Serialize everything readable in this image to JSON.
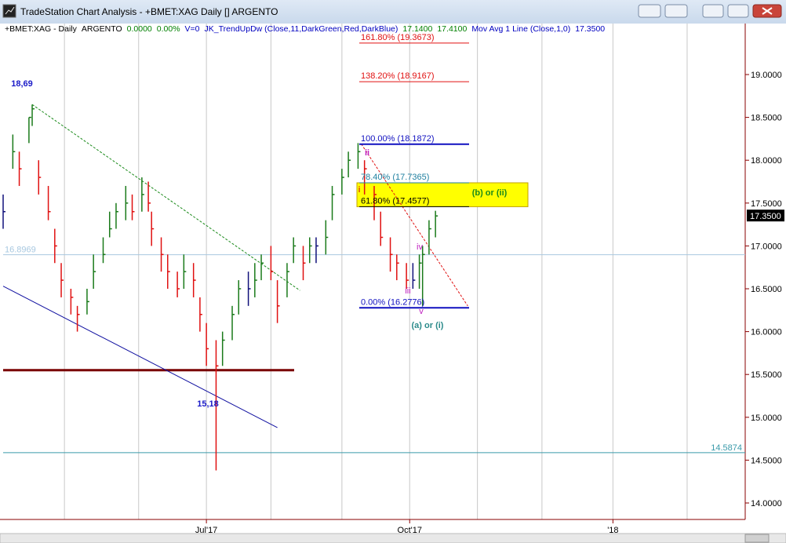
{
  "window": {
    "title": "TradeStation Chart Analysis - +BMET:XAG Daily [] ARGENTO"
  },
  "status_line": [
    {
      "text": "+BMET:XAG - Daily",
      "color": "#000000"
    },
    {
      "text": "ARGENTO",
      "color": "#000000"
    },
    {
      "text": "0.0000",
      "color": "#008000"
    },
    {
      "text": "0.00%",
      "color": "#008000"
    },
    {
      "text": "V=0",
      "color": "#0000c0"
    },
    {
      "text": "JK_TrendUpDw (Close,11,DarkGreen,Red,DarkBlue)",
      "color": "#0000c0"
    },
    {
      "text": "17.1400",
      "color": "#008000"
    },
    {
      "text": "17.4100",
      "color": "#008000"
    },
    {
      "text": "Mov Avg 1 Line (Close,1,0)",
      "color": "#0000c0"
    },
    {
      "text": "17.3500",
      "color": "#0000c0"
    }
  ],
  "chart_data": {
    "type": "ohlc",
    "x": [
      0,
      3,
      5,
      8,
      9,
      11,
      14,
      16,
      18,
      21,
      23,
      26,
      28,
      31,
      33,
      35,
      38,
      40,
      43,
      45,
      46,
      49,
      51,
      54,
      56,
      59,
      61,
      63,
      66,
      68,
      71,
      73,
      76,
      78,
      80,
      83,
      85,
      88,
      90,
      93,
      95,
      97,
      100,
      102,
      105,
      107,
      110,
      112,
      115,
      117,
      120,
      122,
      125,
      127,
      129,
      130,
      132,
      134
    ],
    "high": [
      17.6,
      18.3,
      18.1,
      18.5,
      18.65,
      18.0,
      17.7,
      17.2,
      16.8,
      16.5,
      16.3,
      16.5,
      16.9,
      17.1,
      17.4,
      17.5,
      17.7,
      17.6,
      17.8,
      17.75,
      17.4,
      17.1,
      16.9,
      16.7,
      16.9,
      16.8,
      16.4,
      16.1,
      15.9,
      16.0,
      16.3,
      16.6,
      16.7,
      16.8,
      16.9,
      17.0,
      16.6,
      16.8,
      17.1,
      17.0,
      17.1,
      17.1,
      17.3,
      17.7,
      17.9,
      18.1,
      18.2,
      18.0,
      17.7,
      17.4,
      17.1,
      16.9,
      16.8,
      16.8,
      16.9,
      17.0,
      17.3,
      17.41
    ],
    "low": [
      17.2,
      17.9,
      17.7,
      18.2,
      18.4,
      17.6,
      17.3,
      16.8,
      16.4,
      16.2,
      16.0,
      16.2,
      16.5,
      16.8,
      17.1,
      17.2,
      17.3,
      17.3,
      17.4,
      17.4,
      17.0,
      16.7,
      16.5,
      16.4,
      16.5,
      16.4,
      16.0,
      15.6,
      14.38,
      15.6,
      15.9,
      16.2,
      16.3,
      16.4,
      16.6,
      16.6,
      16.1,
      16.4,
      16.8,
      16.6,
      16.8,
      16.8,
      16.9,
      17.3,
      17.6,
      17.8,
      17.9,
      17.6,
      17.3,
      17.0,
      16.7,
      16.6,
      16.5,
      16.5,
      16.5,
      16.3,
      16.9,
      17.1
    ],
    "close": [
      17.4,
      18.1,
      17.9,
      18.5,
      18.6,
      17.8,
      17.4,
      17.0,
      16.6,
      16.4,
      16.2,
      16.35,
      16.7,
      16.9,
      17.2,
      17.4,
      17.5,
      17.4,
      17.6,
      17.5,
      17.2,
      16.9,
      16.7,
      16.5,
      16.7,
      16.6,
      16.2,
      15.8,
      15.6,
      15.9,
      16.2,
      16.5,
      16.5,
      16.6,
      16.8,
      16.7,
      16.3,
      16.7,
      17.0,
      16.8,
      17.0,
      17.0,
      17.1,
      17.6,
      17.8,
      18.0,
      18.1,
      17.9,
      17.6,
      17.1,
      16.9,
      16.8,
      16.6,
      16.6,
      16.8,
      16.9,
      17.2,
      17.35
    ],
    "up_color": "#1a7a1a",
    "down_color": "#e01010",
    "flat_color": "#10107a",
    "xlim": [
      0,
      230
    ],
    "ylim": [
      13.8,
      19.6
    ],
    "xgrid": [
      19,
      42,
      63,
      83,
      105,
      126,
      147,
      167,
      189,
      212
    ],
    "xticks": [
      {
        "value": 63,
        "label": "Jul'17"
      },
      {
        "value": 126,
        "label": "Oct'17"
      },
      {
        "value": 189,
        "label": "'18"
      }
    ],
    "yticks": [
      {
        "value": 14,
        "label": "14.0000"
      },
      {
        "value": 14.5,
        "label": "14.5000"
      },
      {
        "value": 15,
        "label": "15.0000"
      },
      {
        "value": 15.5,
        "label": "15.5000"
      },
      {
        "value": 16,
        "label": "16.0000"
      },
      {
        "value": 16.5,
        "label": "16.5000"
      },
      {
        "value": 17,
        "label": "17.0000"
      },
      {
        "value": 17.5,
        "label": "17.5000"
      },
      {
        "value": 18,
        "label": "18.0000"
      },
      {
        "value": 18.5,
        "label": "18.5000"
      },
      {
        "value": 19,
        "label": "19.0000"
      }
    ],
    "last_price": {
      "value": 17.35,
      "label": "17.3500"
    },
    "levels": [
      {
        "value": 16.8969,
        "color": "#a8c8e0"
      },
      {
        "value": 14.5874,
        "color": "#3a9aaa"
      }
    ],
    "support": {
      "value": 15.55,
      "color": "#7a0000"
    },
    "fib_levels": [
      {
        "value": 19.3673,
        "label": "161.80% (19.3673)",
        "color": "#e01010"
      },
      {
        "value": 18.9167,
        "label": "138.20% (18.9167)",
        "color": "#e01010"
      },
      {
        "value": 18.1872,
        "label": "100.00% (18.1872)",
        "color": "#1010c0"
      },
      {
        "value": 17.7365,
        "label": "78.40% (17.7365)",
        "color": "#2080a0"
      },
      {
        "value": 17.4577,
        "label": "61.80% (17.4577)",
        "color": "#000000"
      },
      {
        "value": 16.2776,
        "label": "0.00% (16.2776)",
        "color": "#1010c0"
      }
    ],
    "trendlines": [
      {
        "x": [
          0,
          85
        ],
        "y": [
          16.53,
          14.88
        ],
        "color": "#1010a0",
        "dashed": false
      },
      {
        "x": [
          9,
          92
        ],
        "y": [
          18.65,
          16.48
        ],
        "color": "#1a8a1a",
        "dashed": true
      },
      {
        "x": [
          111,
          144
        ],
        "y": [
          18.19,
          16.3
        ],
        "color": "#e01010",
        "dashed": true
      }
    ],
    "annotations": [
      {
        "text": "18,69",
        "color": "#1a1ac8"
      },
      {
        "text": "15,18",
        "color": "#1a1ac8"
      },
      {
        "text": "(b) or (ii)",
        "color": "#1a8a1a"
      },
      {
        "text": "(a) or (i)",
        "color": "#2a8a8a"
      },
      {
        "text": "i",
        "color": "#e05000"
      },
      {
        "text": "ii",
        "color": "#c020c0"
      },
      {
        "text": "iii",
        "color": "#c020c0"
      },
      {
        "text": "iv",
        "color": "#c020c0"
      },
      {
        "text": "v",
        "color": "#c020c0"
      }
    ]
  }
}
